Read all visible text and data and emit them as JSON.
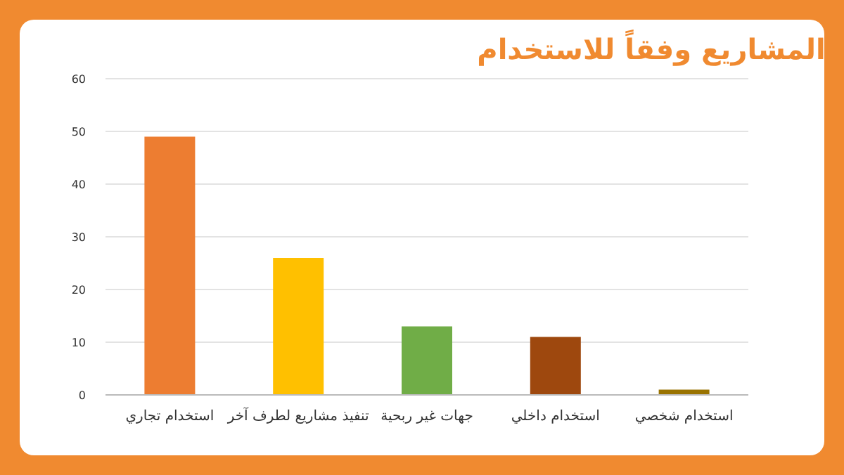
{
  "chart_data": {
    "type": "bar",
    "title": "المشاريع وفقاً للاستخدام",
    "categories": [
      "استخدام تجاري",
      "تنفيذ مشاريع لطرف آخر",
      "جهات غير ربحية",
      "استخدام داخلي",
      "استخدام شخصي"
    ],
    "values": [
      49,
      26,
      13,
      11,
      1
    ],
    "colors": [
      "#ed7d31",
      "#ffc000",
      "#70ad47",
      "#9e480e",
      "#997300"
    ],
    "ylim": [
      0,
      60
    ],
    "yticks": [
      0,
      10,
      20,
      30,
      40,
      50,
      60
    ],
    "grid": "y"
  }
}
